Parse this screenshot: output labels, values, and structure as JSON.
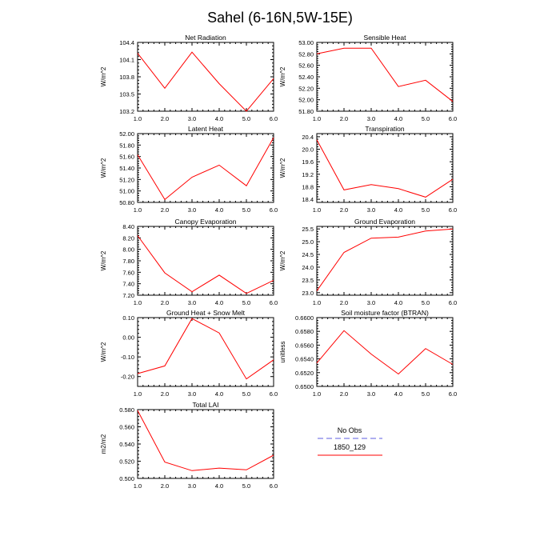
{
  "figure_title": "Sahel (6-16N,5W-15E)",
  "colors": {
    "model": "#ff0000",
    "obs": "#7f7fe8",
    "axis": "#000000"
  },
  "legend": {
    "entries": [
      {
        "label": "No Obs",
        "color": "#7f7fe8",
        "dashed": true
      },
      {
        "label": "1850_129",
        "color": "#ff0000",
        "dashed": false
      }
    ]
  },
  "chart_data": [
    {
      "type": "line",
      "title": "Net Radiation",
      "ylabel": "W/m^2",
      "x": [
        1,
        2,
        3,
        4,
        5,
        6
      ],
      "xlim": [
        1,
        6
      ],
      "xticks": [
        1,
        2,
        3,
        4,
        5,
        6
      ],
      "xtick_labels": [
        "1.0",
        "2.0",
        "3.0",
        "4.0",
        "5.0",
        "6.0"
      ],
      "ylim": [
        103.2,
        104.4
      ],
      "yticks": [
        103.2,
        103.5,
        103.8,
        104.1,
        104.4
      ],
      "ytick_labels": [
        "103.2",
        "103.5",
        "103.8",
        "104.1",
        "104.4"
      ],
      "series": [
        {
          "name": "1850_129",
          "values": [
            104.21,
            103.6,
            104.23,
            103.68,
            103.2,
            103.77
          ]
        }
      ]
    },
    {
      "type": "line",
      "title": "Sensible Heat",
      "ylabel": "W/m^2",
      "x": [
        1,
        2,
        3,
        4,
        5,
        6
      ],
      "xlim": [
        1,
        6
      ],
      "xticks": [
        1,
        2,
        3,
        4,
        5,
        6
      ],
      "xtick_labels": [
        "1.0",
        "2.0",
        "3.0",
        "4.0",
        "5.0",
        "6.0"
      ],
      "ylim": [
        51.8,
        53.0
      ],
      "yticks": [
        51.8,
        52.0,
        52.2,
        52.4,
        52.6,
        52.8,
        53.0
      ],
      "ytick_labels": [
        "51.80",
        "52.00",
        "52.20",
        "52.40",
        "52.60",
        "52.80",
        "53.00"
      ],
      "series": [
        {
          "name": "1850_129",
          "values": [
            52.8,
            52.9,
            52.9,
            52.23,
            52.34,
            51.97
          ]
        }
      ]
    },
    {
      "type": "line",
      "title": "Latent Heat",
      "ylabel": "W/m^2",
      "x": [
        1,
        2,
        3,
        4,
        5,
        6
      ],
      "xlim": [
        1,
        6
      ],
      "xticks": [
        1,
        2,
        3,
        4,
        5,
        6
      ],
      "xtick_labels": [
        "1.0",
        "2.0",
        "3.0",
        "4.0",
        "5.0",
        "6.0"
      ],
      "ylim": [
        50.8,
        52.0
      ],
      "yticks": [
        50.8,
        51.0,
        51.2,
        51.4,
        51.6,
        51.8,
        52.0
      ],
      "ytick_labels": [
        "50.80",
        "51.00",
        "51.20",
        "51.40",
        "51.60",
        "51.80",
        "52.00"
      ],
      "series": [
        {
          "name": "1850_129",
          "values": [
            51.63,
            50.85,
            51.24,
            51.45,
            51.09,
            51.93
          ]
        }
      ]
    },
    {
      "type": "line",
      "title": "Transpiration",
      "ylabel": "W/m^2",
      "x": [
        1,
        2,
        3,
        4,
        5,
        6
      ],
      "xlim": [
        1,
        6
      ],
      "xticks": [
        1,
        2,
        3,
        4,
        5,
        6
      ],
      "xtick_labels": [
        "1.0",
        "2.0",
        "3.0",
        "4.0",
        "5.0",
        "6.0"
      ],
      "ylim": [
        18.3,
        20.5
      ],
      "yticks": [
        18.4,
        18.8,
        19.2,
        19.6,
        20.0,
        20.4
      ],
      "ytick_labels": [
        "18.4",
        "18.8",
        "19.2",
        "19.6",
        "20.0",
        "20.4"
      ],
      "series": [
        {
          "name": "1850_129",
          "values": [
            20.3,
            18.7,
            18.87,
            18.74,
            18.47,
            19.04
          ]
        }
      ]
    },
    {
      "type": "line",
      "title": "Canopy Evaporation",
      "ylabel": "W/m^2",
      "x": [
        1,
        2,
        3,
        4,
        5,
        6
      ],
      "xlim": [
        1,
        6
      ],
      "xticks": [
        1,
        2,
        3,
        4,
        5,
        6
      ],
      "xtick_labels": [
        "1.0",
        "2.0",
        "3.0",
        "4.0",
        "5.0",
        "6.0"
      ],
      "ylim": [
        7.2,
        8.4
      ],
      "yticks": [
        7.2,
        7.4,
        7.6,
        7.8,
        8.0,
        8.2,
        8.4
      ],
      "ytick_labels": [
        "7.20",
        "7.40",
        "7.60",
        "7.80",
        "8.00",
        "8.20",
        "8.40"
      ],
      "series": [
        {
          "name": "1850_129",
          "values": [
            8.24,
            7.59,
            7.26,
            7.55,
            7.23,
            7.46
          ]
        }
      ]
    },
    {
      "type": "line",
      "title": "Ground Evaporation",
      "ylabel": "W/m^2",
      "x": [
        1,
        2,
        3,
        4,
        5,
        6
      ],
      "xlim": [
        1,
        6
      ],
      "xticks": [
        1,
        2,
        3,
        4,
        5,
        6
      ],
      "xtick_labels": [
        "1.0",
        "2.0",
        "3.0",
        "4.0",
        "5.0",
        "6.0"
      ],
      "ylim": [
        22.9,
        25.6
      ],
      "yticks": [
        23.0,
        23.5,
        24.0,
        24.5,
        25.0,
        25.5
      ],
      "ytick_labels": [
        "23.0",
        "23.5",
        "24.0",
        "24.5",
        "25.0",
        "25.5"
      ],
      "series": [
        {
          "name": "1850_129",
          "values": [
            23.07,
            24.58,
            25.14,
            25.18,
            25.42,
            25.5
          ]
        }
      ]
    },
    {
      "type": "line",
      "title": "Ground Heat + Snow Melt",
      "ylabel": "W/m^2",
      "x": [
        1,
        2,
        3,
        4,
        5,
        6
      ],
      "xlim": [
        1,
        6
      ],
      "xticks": [
        1,
        2,
        3,
        4,
        5,
        6
      ],
      "xtick_labels": [
        "1.0",
        "2.0",
        "3.0",
        "4.0",
        "5.0",
        "6.0"
      ],
      "ylim": [
        -0.25,
        0.1
      ],
      "yticks": [
        -0.2,
        -0.1,
        0.0,
        0.1
      ],
      "ytick_labels": [
        "-0.20",
        "-0.10",
        "0.00",
        "0.10"
      ],
      "series": [
        {
          "name": "1850_129",
          "values": [
            -0.185,
            -0.146,
            0.095,
            0.022,
            -0.212,
            -0.115
          ]
        }
      ]
    },
    {
      "type": "line",
      "title": "Soil moisture factor (BTRAN)",
      "ylabel": "unitless",
      "x": [
        1,
        2,
        3,
        4,
        5,
        6
      ],
      "xlim": [
        1,
        6
      ],
      "xticks": [
        1,
        2,
        3,
        4,
        5,
        6
      ],
      "xtick_labels": [
        "1.0",
        "2.0",
        "3.0",
        "4.0",
        "5.0",
        "6.0"
      ],
      "ylim": [
        0.65,
        0.66
      ],
      "yticks": [
        0.65,
        0.652,
        0.654,
        0.656,
        0.658,
        0.66
      ],
      "ytick_labels": [
        "0.6500",
        "0.6520",
        "0.6540",
        "0.6560",
        "0.6580",
        "0.6600"
      ],
      "series": [
        {
          "name": "1850_129",
          "values": [
            0.6534,
            0.6581,
            0.6547,
            0.6518,
            0.6555,
            0.6532
          ]
        }
      ]
    },
    {
      "type": "line",
      "title": "Total LAI",
      "ylabel": "m2/m2",
      "x": [
        1,
        2,
        3,
        4,
        5,
        6
      ],
      "xlim": [
        1,
        6
      ],
      "xticks": [
        1,
        2,
        3,
        4,
        5,
        6
      ],
      "xtick_labels": [
        "1.0",
        "2.0",
        "3.0",
        "4.0",
        "5.0",
        "6.0"
      ],
      "ylim": [
        0.5,
        0.58
      ],
      "yticks": [
        0.5,
        0.52,
        0.54,
        0.56,
        0.58
      ],
      "ytick_labels": [
        "0.500",
        "0.520",
        "0.540",
        "0.560",
        "0.580"
      ],
      "series": [
        {
          "name": "1850_129",
          "values": [
            0.579,
            0.519,
            0.509,
            0.512,
            0.51,
            0.527
          ]
        }
      ]
    }
  ]
}
